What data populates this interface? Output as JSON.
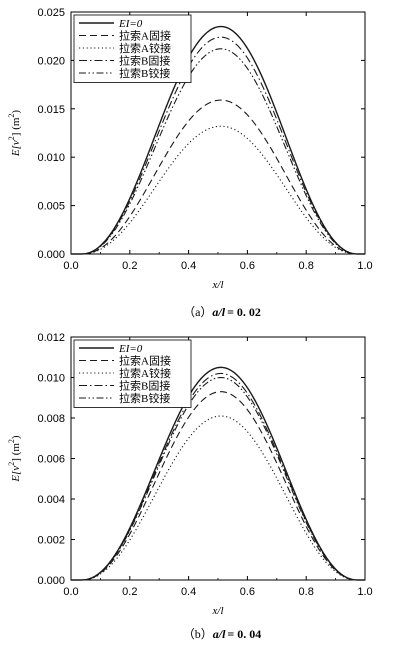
{
  "figure": {
    "line_color": "#1a1a1a"
  },
  "chart_data": [
    {
      "type": "line",
      "panel_caption_prefix": "（a）",
      "panel_caption_var": "a/l",
      "panel_caption_value": "= 0. 02",
      "xlabel": "x/l",
      "ylabel_prefix": "E",
      "ylabel_mid": "[v",
      "ylabel_sup": "2",
      "ylabel_suffix": "] (m",
      "ylabel_sup2": "2",
      "ylabel_end": ")",
      "xlim": [
        0.0,
        1.0
      ],
      "ylim": [
        0.0,
        0.025
      ],
      "xticks": [
        "0.0",
        "0.2",
        "0.4",
        "0.6",
        "0.8",
        "1.0"
      ],
      "yticks": [
        "0.000",
        "0.005",
        "0.010",
        "0.015",
        "0.020",
        "0.025"
      ],
      "legend_position": "top-left",
      "series": [
        {
          "name": "EI=0",
          "italic_name": true,
          "style": "solid",
          "peak": 0.0235,
          "peak_x": 0.51
        },
        {
          "name": "拉索A固接",
          "style": "dash",
          "peak": 0.0159,
          "peak_x": 0.51
        },
        {
          "name": "拉索A铰接",
          "style": "dot",
          "peak": 0.0132,
          "peak_x": 0.51
        },
        {
          "name": "拉索B固接",
          "style": "dashdot",
          "peak": 0.0224,
          "peak_x": 0.51
        },
        {
          "name": "拉索B铰接",
          "style": "dashdotdot",
          "peak": 0.0212,
          "peak_x": 0.51
        }
      ]
    },
    {
      "type": "line",
      "panel_caption_prefix": "（b）",
      "panel_caption_var": "a/l",
      "panel_caption_value": "= 0. 04",
      "xlabel": "x/l",
      "ylabel_prefix": "E",
      "ylabel_mid": "[v",
      "ylabel_sup": "2",
      "ylabel_suffix": "] (m",
      "ylabel_sup2": "2",
      "ylabel_end": ")",
      "xlim": [
        0.0,
        1.0
      ],
      "ylim": [
        0.0,
        0.012
      ],
      "xticks": [
        "0.0",
        "0.2",
        "0.4",
        "0.6",
        "0.8",
        "1.0"
      ],
      "yticks": [
        "0.000",
        "0.002",
        "0.004",
        "0.006",
        "0.008",
        "0.010",
        "0.012"
      ],
      "legend_position": "top-left",
      "series": [
        {
          "name": "EI=0",
          "italic_name": true,
          "style": "solid",
          "peak": 0.0105,
          "peak_x": 0.51
        },
        {
          "name": "拉索A固接",
          "style": "dash",
          "peak": 0.0093,
          "peak_x": 0.51
        },
        {
          "name": "拉索A铰接",
          "style": "dot",
          "peak": 0.0081,
          "peak_x": 0.51
        },
        {
          "name": "拉索B固接",
          "style": "dashdot",
          "peak": 0.0102,
          "peak_x": 0.51
        },
        {
          "name": "拉索B铰接",
          "style": "dashdotdot",
          "peak": 0.01,
          "peak_x": 0.51
        }
      ]
    }
  ]
}
